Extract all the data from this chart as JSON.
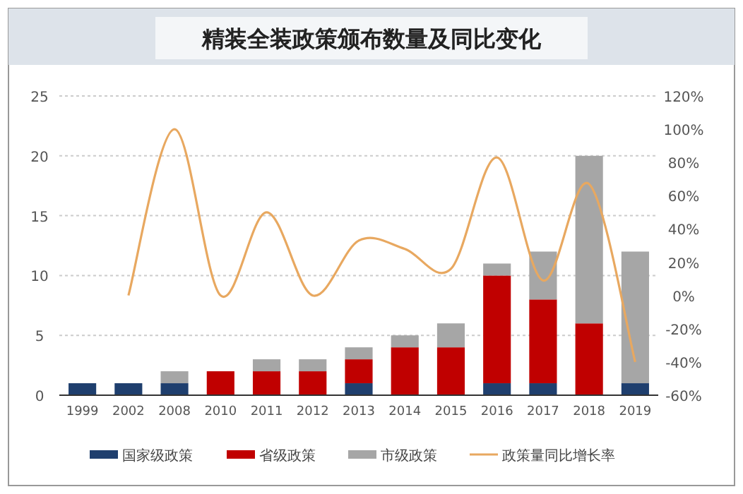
{
  "chart_data": {
    "type": "bar",
    "title": "精装全装政策颁布数量及同比变化",
    "stacked": true,
    "legend": "bottom",
    "grid": "y",
    "marker": "none",
    "categories": [
      "1999",
      "2002",
      "2008",
      "2010",
      "2011",
      "2012",
      "2013",
      "2014",
      "2015",
      "2016",
      "2017",
      "2018",
      "2019"
    ],
    "series": [
      {
        "name": "国家级政策",
        "color": "#1f3f6e",
        "values": [
          1,
          1,
          1,
          0,
          0,
          0,
          1,
          0,
          0,
          1,
          1,
          0,
          1
        ]
      },
      {
        "name": "省级政策",
        "color": "#c00000",
        "values": [
          0,
          0,
          0,
          2,
          2,
          2,
          2,
          4,
          4,
          9,
          7,
          6,
          0
        ]
      },
      {
        "name": "市级政策",
        "color": "#a6a6a6",
        "values": [
          0,
          0,
          1,
          0,
          1,
          1,
          1,
          1,
          2,
          1,
          4,
          14,
          11
        ]
      },
      {
        "name": "政策量同比增长率",
        "type": "line",
        "axis": "y2",
        "color": "#e8a860",
        "values": [
          null,
          0,
          100,
          0,
          50,
          0,
          33,
          28,
          16,
          83,
          9,
          67,
          -40
        ]
      }
    ],
    "ylim": [
      0,
      25
    ],
    "yticks": [
      0,
      5,
      10,
      15,
      20,
      25
    ],
    "y2lim": [
      -60,
      120
    ],
    "y2ticks": [
      {
        "value": -60,
        "label": "-60%"
      },
      {
        "value": -40,
        "label": "-40%"
      },
      {
        "value": -20,
        "label": "-20%"
      },
      {
        "value": 0,
        "label": "0%"
      },
      {
        "value": 20,
        "label": "20%"
      },
      {
        "value": 40,
        "label": "40%"
      },
      {
        "value": 60,
        "label": "60%"
      },
      {
        "value": 80,
        "label": "80%"
      },
      {
        "value": 100,
        "label": "100%"
      },
      {
        "value": 120,
        "label": "120%"
      }
    ]
  }
}
